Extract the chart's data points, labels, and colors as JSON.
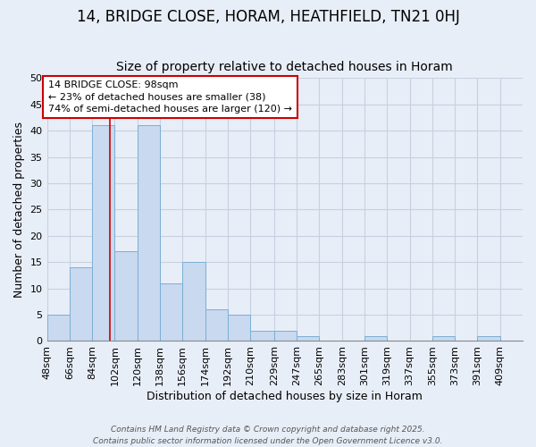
{
  "title1": "14, BRIDGE CLOSE, HORAM, HEATHFIELD, TN21 0HJ",
  "title2": "Size of property relative to detached houses in Horam",
  "xlabel": "Distribution of detached houses by size in Horam",
  "ylabel": "Number of detached properties",
  "bin_labels": [
    "48sqm",
    "66sqm",
    "84sqm",
    "102sqm",
    "120sqm",
    "138sqm",
    "156sqm",
    "174sqm",
    "192sqm",
    "210sqm",
    "229sqm",
    "247sqm",
    "265sqm",
    "283sqm",
    "301sqm",
    "319sqm",
    "337sqm",
    "355sqm",
    "373sqm",
    "391sqm",
    "409sqm"
  ],
  "bin_edges": [
    48,
    66,
    84,
    102,
    120,
    138,
    156,
    174,
    192,
    210,
    229,
    247,
    265,
    283,
    301,
    319,
    337,
    355,
    373,
    391,
    409,
    427
  ],
  "bar_heights": [
    5,
    14,
    41,
    17,
    41,
    11,
    15,
    6,
    5,
    2,
    2,
    1,
    0,
    0,
    1,
    0,
    0,
    1,
    0,
    1,
    0
  ],
  "bar_color": "#c9d9ef",
  "bar_edge_color": "#7aafd4",
  "property_size": 98,
  "vline_color": "#cc0000",
  "annotation_text": "14 BRIDGE CLOSE: 98sqm\n← 23% of detached houses are smaller (38)\n74% of semi-detached houses are larger (120) →",
  "annotation_box_color": "white",
  "annotation_box_edge": "#cc0000",
  "ylim": [
    0,
    50
  ],
  "yticks": [
    0,
    5,
    10,
    15,
    20,
    25,
    30,
    35,
    40,
    45,
    50
  ],
  "grid_color": "#c8d0e0",
  "background_color": "#e8eef8",
  "footer_text": "Contains HM Land Registry data © Crown copyright and database right 2025.\nContains public sector information licensed under the Open Government Licence v3.0.",
  "title1_fontsize": 12,
  "title2_fontsize": 10,
  "xlabel_fontsize": 9,
  "ylabel_fontsize": 9,
  "tick_fontsize": 8,
  "ann_fontsize": 8
}
